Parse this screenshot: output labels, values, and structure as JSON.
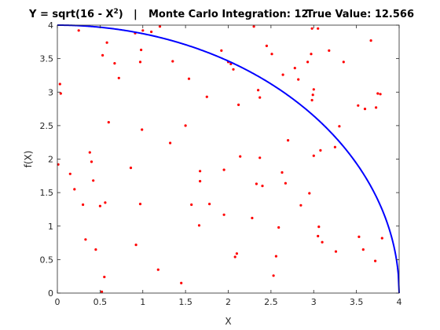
{
  "chart_data": {
    "type": "scatter",
    "title_parts": {
      "equation_prefix": "Y = sqrt(16 - X",
      "equation_exponent": "2",
      "equation_suffix": ")",
      "separator": "|",
      "mc_label": "Monte Carlo Integration: 12",
      "true_label": "True Value: 12.566"
    },
    "xlabel": "X",
    "ylabel": "f(X)",
    "xlim": [
      0,
      4
    ],
    "ylim": [
      0,
      4
    ],
    "xticks": [
      0,
      0.5,
      1,
      1.5,
      2,
      2.5,
      3,
      3.5,
      4
    ],
    "xtick_labels": [
      "0",
      "0.5",
      "1",
      "1.5",
      "2",
      "2.5",
      "3",
      "3.5",
      "4"
    ],
    "yticks": [
      0,
      0.5,
      1,
      1.5,
      2,
      2.5,
      3,
      3.5,
      4
    ],
    "ytick_labels": [
      "0",
      "0.5",
      "1",
      "1.5",
      "2",
      "2.5",
      "3",
      "3.5",
      "4"
    ],
    "grid": false,
    "curve_color": "#0000ff",
    "point_color": "#ff0000",
    "points": [
      [
        0.01,
        1.92
      ],
      [
        0.03,
        3.12
      ],
      [
        0.04,
        2.98
      ],
      [
        0.15,
        1.78
      ],
      [
        0.2,
        1.55
      ],
      [
        0.25,
        3.92
      ],
      [
        0.3,
        1.32
      ],
      [
        0.33,
        0.8
      ],
      [
        0.38,
        2.1
      ],
      [
        0.4,
        1.96
      ],
      [
        0.42,
        1.68
      ],
      [
        0.45,
        0.65
      ],
      [
        0.5,
        1.3
      ],
      [
        0.52,
        0.02
      ],
      [
        0.53,
        3.55
      ],
      [
        0.55,
        0.24
      ],
      [
        0.56,
        1.35
      ],
      [
        0.58,
        3.74
      ],
      [
        0.6,
        2.55
      ],
      [
        0.67,
        3.43
      ],
      [
        0.72,
        3.21
      ],
      [
        0.86,
        1.87
      ],
      [
        0.91,
        3.88
      ],
      [
        0.92,
        0.72
      ],
      [
        0.97,
        1.33
      ],
      [
        0.97,
        3.45
      ],
      [
        0.98,
        3.63
      ],
      [
        0.99,
        2.44
      ],
      [
        1.0,
        3.92
      ],
      [
        1.1,
        3.9
      ],
      [
        1.18,
        0.35
      ],
      [
        1.2,
        3.98
      ],
      [
        1.32,
        2.24
      ],
      [
        1.35,
        3.46
      ],
      [
        1.45,
        0.15
      ],
      [
        1.5,
        2.5
      ],
      [
        1.54,
        3.2
      ],
      [
        1.57,
        1.32
      ],
      [
        1.66,
        1.01
      ],
      [
        1.67,
        1.67
      ],
      [
        1.67,
        1.82
      ],
      [
        1.75,
        2.93
      ],
      [
        1.78,
        1.33
      ],
      [
        1.92,
        3.62
      ],
      [
        1.95,
        1.17
      ],
      [
        1.95,
        1.84
      ],
      [
        2.0,
        3.45
      ],
      [
        2.03,
        3.42
      ],
      [
        2.06,
        3.34
      ],
      [
        2.08,
        0.54
      ],
      [
        2.1,
        0.59
      ],
      [
        2.12,
        2.81
      ],
      [
        2.14,
        2.04
      ],
      [
        2.28,
        1.12
      ],
      [
        2.3,
        3.98
      ],
      [
        2.33,
        1.63
      ],
      [
        2.35,
        3.03
      ],
      [
        2.37,
        2.02
      ],
      [
        2.37,
        2.92
      ],
      [
        2.4,
        1.6
      ],
      [
        2.45,
        3.69
      ],
      [
        2.51,
        3.57
      ],
      [
        2.53,
        0.26
      ],
      [
        2.56,
        0.55
      ],
      [
        2.59,
        0.98
      ],
      [
        2.63,
        1.8
      ],
      [
        2.64,
        3.26
      ],
      [
        2.67,
        1.64
      ],
      [
        2.7,
        2.28
      ],
      [
        2.78,
        3.36
      ],
      [
        2.82,
        3.19
      ],
      [
        2.85,
        1.31
      ],
      [
        2.93,
        3.45
      ],
      [
        2.95,
        1.49
      ],
      [
        2.97,
        3.57
      ],
      [
        2.98,
        2.88
      ],
      [
        2.98,
        3.95
      ],
      [
        2.99,
        2.96
      ],
      [
        3.0,
        3.04
      ],
      [
        3.0,
        2.05
      ],
      [
        3.05,
        3.95
      ],
      [
        3.05,
        0.85
      ],
      [
        3.06,
        0.99
      ],
      [
        3.08,
        2.13
      ],
      [
        3.1,
        0.76
      ],
      [
        3.18,
        3.62
      ],
      [
        3.25,
        2.18
      ],
      [
        3.26,
        0.62
      ],
      [
        3.3,
        2.49
      ],
      [
        3.35,
        3.45
      ],
      [
        3.52,
        2.8
      ],
      [
        3.53,
        0.84
      ],
      [
        3.58,
        0.65
      ],
      [
        3.67,
        3.77
      ],
      [
        3.72,
        0.48
      ],
      [
        3.73,
        2.77
      ],
      [
        3.75,
        2.98
      ],
      [
        3.78,
        2.97
      ],
      [
        3.8,
        0.82
      ],
      [
        3.6,
        2.75
      ]
    ]
  }
}
